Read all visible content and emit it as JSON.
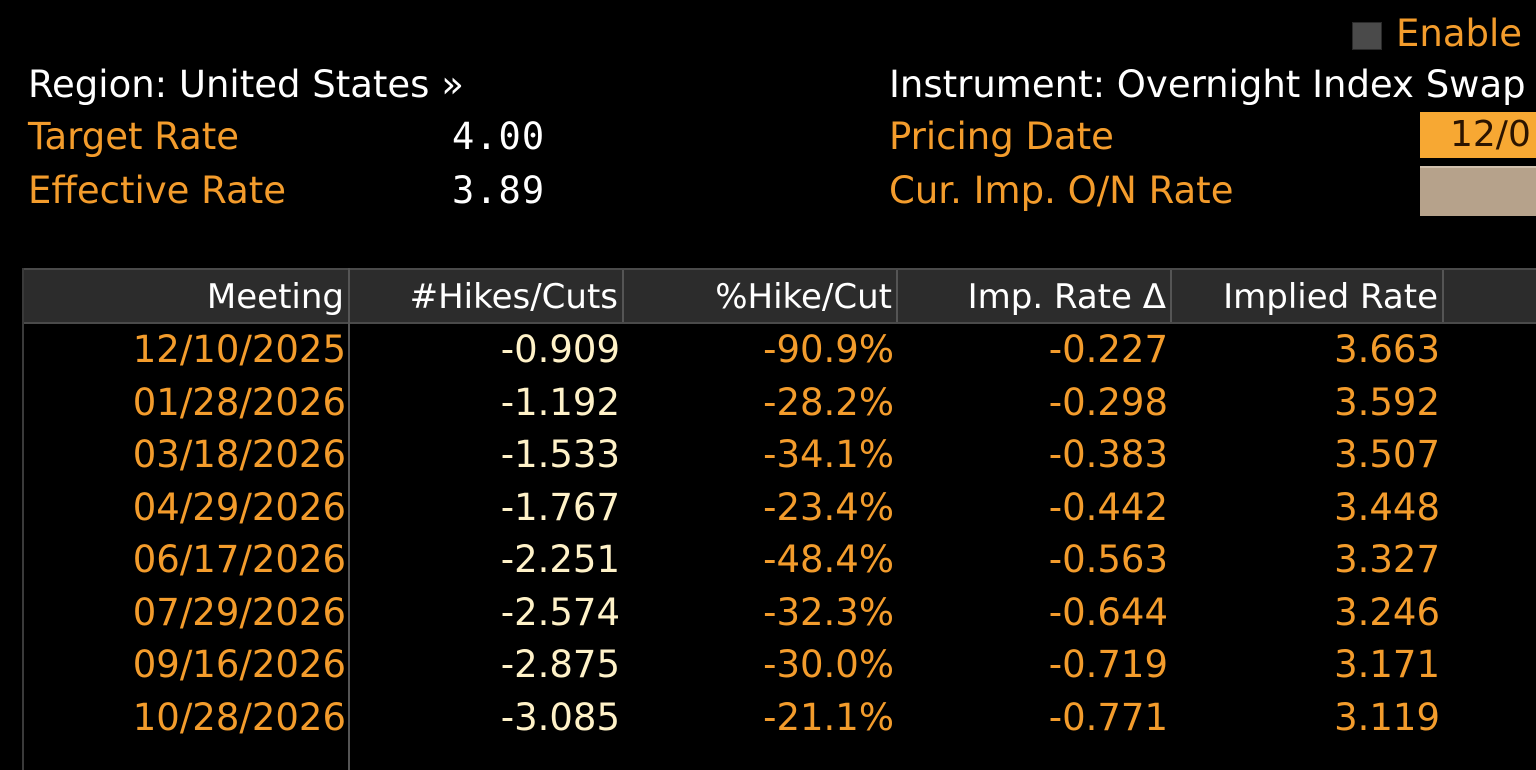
{
  "enable": {
    "label": "Enable"
  },
  "region": {
    "label": "Region: United States »"
  },
  "instrument": {
    "label": "Instrument: Overnight Index Swap"
  },
  "summary": [
    {
      "label": "Target Rate",
      "value": "4.00"
    },
    {
      "label": "Effective Rate",
      "value": "3.89"
    }
  ],
  "pricing": {
    "pricing_date_label": "Pricing Date",
    "pricing_date_value": "12/0",
    "cur_imp_label": "Cur. Imp. O/N Rate",
    "cur_imp_value": ""
  },
  "table": {
    "headers": [
      "Meeting",
      "#Hikes/Cuts",
      "%Hike/Cut",
      "Imp. Rate Δ",
      "Implied Rate"
    ],
    "rows": [
      {
        "meeting": "12/10/2025",
        "hikes_cuts": "-0.909",
        "pct": "-90.9%",
        "delta": "-0.227",
        "implied": "3.663"
      },
      {
        "meeting": "01/28/2026",
        "hikes_cuts": "-1.192",
        "pct": "-28.2%",
        "delta": "-0.298",
        "implied": "3.592"
      },
      {
        "meeting": "03/18/2026",
        "hikes_cuts": "-1.533",
        "pct": "-34.1%",
        "delta": "-0.383",
        "implied": "3.507"
      },
      {
        "meeting": "04/29/2026",
        "hikes_cuts": "-1.767",
        "pct": "-23.4%",
        "delta": "-0.442",
        "implied": "3.448"
      },
      {
        "meeting": "06/17/2026",
        "hikes_cuts": "-2.251",
        "pct": "-48.4%",
        "delta": "-0.563",
        "implied": "3.327"
      },
      {
        "meeting": "07/29/2026",
        "hikes_cuts": "-2.574",
        "pct": "-32.3%",
        "delta": "-0.644",
        "implied": "3.246"
      },
      {
        "meeting": "09/16/2026",
        "hikes_cuts": "-2.875",
        "pct": "-30.0%",
        "delta": "-0.719",
        "implied": "3.171"
      },
      {
        "meeting": "10/28/2026",
        "hikes_cuts": "-3.085",
        "pct": "-21.1%",
        "delta": "-0.771",
        "implied": "3.119"
      }
    ]
  },
  "colors": {
    "label_orange": "#f39c2c",
    "value_cream": "#fff2c8",
    "header_bg": "#2c2c2c",
    "pricing_field_bg": "#f7a833",
    "rate_field_bg": "#b6a28b"
  }
}
